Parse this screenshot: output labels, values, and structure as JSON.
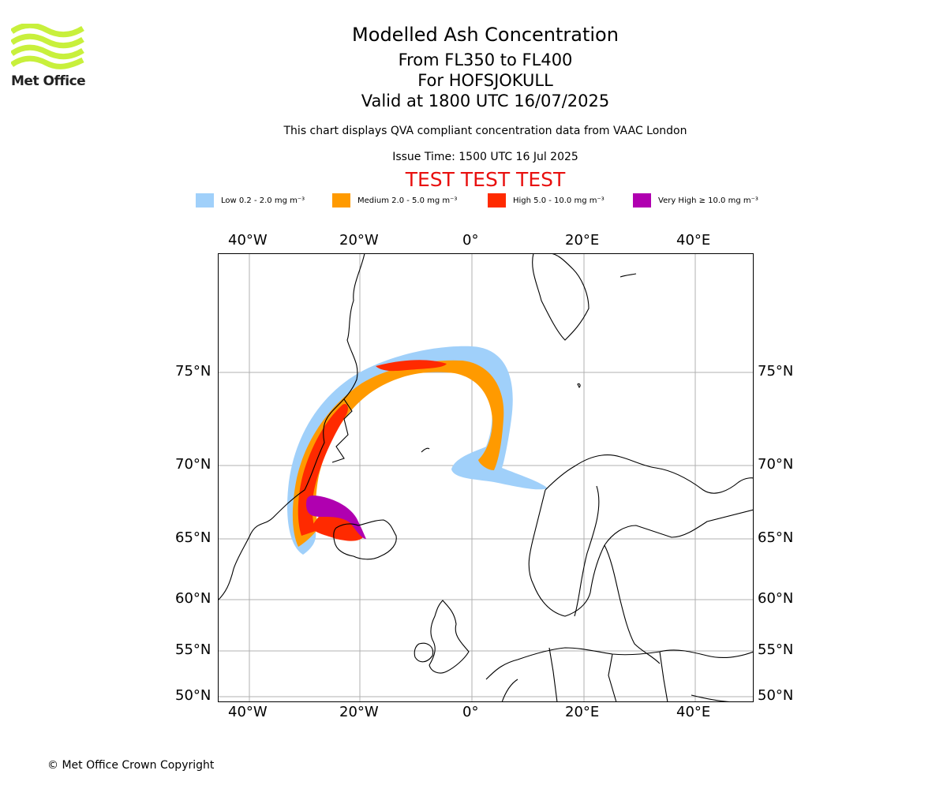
{
  "logo": {
    "text": "Met Office",
    "color": "#c8f03c"
  },
  "header": {
    "title": "Modelled Ash Concentration",
    "level_range": "From FL350 to FL400",
    "volcano": "For HOFSJOKULL",
    "valid_time": "Valid at 1800 UTC 16/07/2025",
    "notice": "This chart displays QVA compliant concentration data from VAAC London",
    "issue_time": "Issue Time: 1500 UTC 16 Jul 2025",
    "test_banner": "TEST TEST TEST",
    "test_color": "#e8100f"
  },
  "legend": [
    {
      "label": "Low 0.2 - 2.0 mg m⁻³",
      "color": "#a0d0fa"
    },
    {
      "label": "Medium 2.0 - 5.0 mg m⁻³",
      "color": "#ff9a00"
    },
    {
      "label": "High 5.0 - 10.0 mg m⁻³",
      "color": "#ff2a00"
    },
    {
      "label": "Very High  ≥  10.0 mg m⁻³",
      "color": "#b000b0"
    }
  ],
  "map": {
    "longitude_labels": [
      "40°W",
      "20°W",
      "0°",
      "20°E",
      "40°E"
    ],
    "latitude_labels": [
      "75°N",
      "70°N",
      "65°N",
      "60°N",
      "55°N",
      "50°N"
    ],
    "gridlines": true,
    "coastline_color": "#000000"
  },
  "footer": {
    "copyright": "© Met Office Crown Copyright"
  }
}
